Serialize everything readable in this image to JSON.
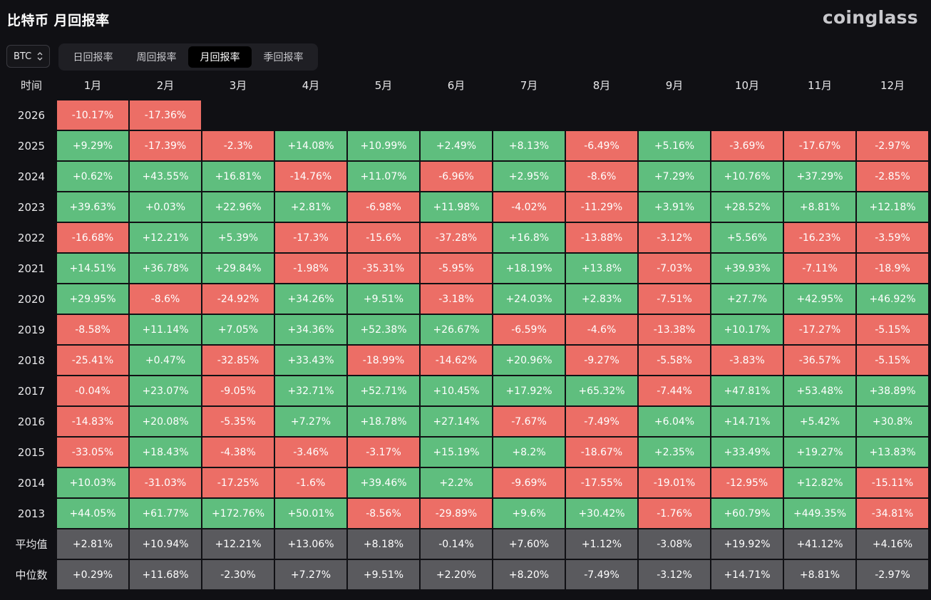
{
  "header": {
    "title": "比特币 月回报率",
    "logo": "coinglass"
  },
  "asset_select": {
    "value": "BTC"
  },
  "tabs": [
    {
      "label": "日回报率",
      "active": false
    },
    {
      "label": "周回报率",
      "active": false
    },
    {
      "label": "月回报率",
      "active": true
    },
    {
      "label": "季回报率",
      "active": false
    }
  ],
  "colors": {
    "positive": "#5fbe7e",
    "negative": "#ec6e66",
    "stat": "#5a5a5e",
    "background": "#101014"
  },
  "table": {
    "corner": "时间",
    "months": [
      "1月",
      "2月",
      "3月",
      "4月",
      "5月",
      "6月",
      "7月",
      "8月",
      "9月",
      "10月",
      "11月",
      "12月"
    ],
    "rows": [
      {
        "year": "2026",
        "values": [
          "-10.17%",
          "-17.36%",
          "",
          "",
          "",
          "",
          "",
          "",
          "",
          "",
          "",
          ""
        ]
      },
      {
        "year": "2025",
        "values": [
          "+9.29%",
          "-17.39%",
          "-2.3%",
          "+14.08%",
          "+10.99%",
          "+2.49%",
          "+8.13%",
          "-6.49%",
          "+5.16%",
          "-3.69%",
          "-17.67%",
          "-2.97%"
        ]
      },
      {
        "year": "2024",
        "values": [
          "+0.62%",
          "+43.55%",
          "+16.81%",
          "-14.76%",
          "+11.07%",
          "-6.96%",
          "+2.95%",
          "-8.6%",
          "+7.29%",
          "+10.76%",
          "+37.29%",
          "-2.85%"
        ]
      },
      {
        "year": "2023",
        "values": [
          "+39.63%",
          "+0.03%",
          "+22.96%",
          "+2.81%",
          "-6.98%",
          "+11.98%",
          "-4.02%",
          "-11.29%",
          "+3.91%",
          "+28.52%",
          "+8.81%",
          "+12.18%"
        ]
      },
      {
        "year": "2022",
        "values": [
          "-16.68%",
          "+12.21%",
          "+5.39%",
          "-17.3%",
          "-15.6%",
          "-37.28%",
          "+16.8%",
          "-13.88%",
          "-3.12%",
          "+5.56%",
          "-16.23%",
          "-3.59%"
        ]
      },
      {
        "year": "2021",
        "values": [
          "+14.51%",
          "+36.78%",
          "+29.84%",
          "-1.98%",
          "-35.31%",
          "-5.95%",
          "+18.19%",
          "+13.8%",
          "-7.03%",
          "+39.93%",
          "-7.11%",
          "-18.9%"
        ]
      },
      {
        "year": "2020",
        "values": [
          "+29.95%",
          "-8.6%",
          "-24.92%",
          "+34.26%",
          "+9.51%",
          "-3.18%",
          "+24.03%",
          "+2.83%",
          "-7.51%",
          "+27.7%",
          "+42.95%",
          "+46.92%"
        ]
      },
      {
        "year": "2019",
        "values": [
          "-8.58%",
          "+11.14%",
          "+7.05%",
          "+34.36%",
          "+52.38%",
          "+26.67%",
          "-6.59%",
          "-4.6%",
          "-13.38%",
          "+10.17%",
          "-17.27%",
          "-5.15%"
        ]
      },
      {
        "year": "2018",
        "values": [
          "-25.41%",
          "+0.47%",
          "-32.85%",
          "+33.43%",
          "-18.99%",
          "-14.62%",
          "+20.96%",
          "-9.27%",
          "-5.58%",
          "-3.83%",
          "-36.57%",
          "-5.15%"
        ]
      },
      {
        "year": "2017",
        "values": [
          "-0.04%",
          "+23.07%",
          "-9.05%",
          "+32.71%",
          "+52.71%",
          "+10.45%",
          "+17.92%",
          "+65.32%",
          "-7.44%",
          "+47.81%",
          "+53.48%",
          "+38.89%"
        ]
      },
      {
        "year": "2016",
        "values": [
          "-14.83%",
          "+20.08%",
          "-5.35%",
          "+7.27%",
          "+18.78%",
          "+27.14%",
          "-7.67%",
          "-7.49%",
          "+6.04%",
          "+14.71%",
          "+5.42%",
          "+30.8%"
        ]
      },
      {
        "year": "2015",
        "values": [
          "-33.05%",
          "+18.43%",
          "-4.38%",
          "-3.46%",
          "-3.17%",
          "+15.19%",
          "+8.2%",
          "-18.67%",
          "+2.35%",
          "+33.49%",
          "+19.27%",
          "+13.83%"
        ]
      },
      {
        "year": "2014",
        "values": [
          "+10.03%",
          "-31.03%",
          "-17.25%",
          "-1.6%",
          "+39.46%",
          "+2.2%",
          "-9.69%",
          "-17.55%",
          "-19.01%",
          "-12.95%",
          "+12.82%",
          "-15.11%"
        ]
      },
      {
        "year": "2013",
        "values": [
          "+44.05%",
          "+61.77%",
          "+172.76%",
          "+50.01%",
          "-8.56%",
          "-29.89%",
          "+9.6%",
          "+30.42%",
          "-1.76%",
          "+60.79%",
          "+449.35%",
          "-34.81%"
        ]
      }
    ],
    "stats": [
      {
        "label": "平均值",
        "values": [
          "+2.81%",
          "+10.94%",
          "+12.21%",
          "+13.06%",
          "+8.18%",
          "-0.14%",
          "+7.60%",
          "+1.12%",
          "-3.08%",
          "+19.92%",
          "+41.12%",
          "+4.16%"
        ]
      },
      {
        "label": "中位数",
        "values": [
          "+0.29%",
          "+11.68%",
          "-2.30%",
          "+7.27%",
          "+9.51%",
          "+2.20%",
          "+8.20%",
          "-7.49%",
          "-3.12%",
          "+14.71%",
          "+8.81%",
          "-2.97%"
        ]
      }
    ]
  }
}
